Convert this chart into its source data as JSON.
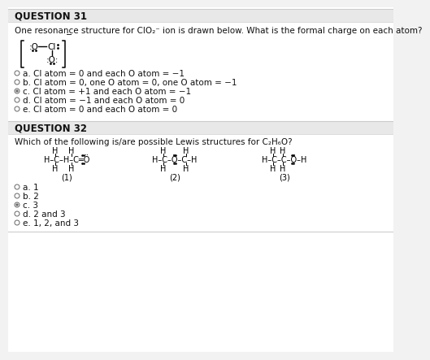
{
  "bg_color": "#f2f2f2",
  "panel_color": "#ffffff",
  "header_color": "#e8e8e8",
  "q31_title": "QUESTION 31",
  "q31_text": "One resonance structure for ClO₂⁻ ion is drawn below. What is the formal charge on each atom?",
  "q31_options": [
    "a. Cl atom = 0 and each O atom = −1",
    "b. Cl atom = 0, one O atom = 0, one O atom = −1",
    "c. Cl atom = +1 and each O atom = −1",
    "d. Cl atom = −1 and each O atom = 0",
    "e. Cl atom = 0 and each O atom = 0"
  ],
  "q31_answer": "c",
  "q32_title": "QUESTION 32",
  "q32_text": "Which of the following is/are possible Lewis structures for C₂H₆O?",
  "q32_options": [
    "a. 1",
    "b. 2",
    "c. 3",
    "d. 2 and 3",
    "e. 1, 2, and 3"
  ],
  "q32_answer": "c",
  "divider_color": "#cccccc",
  "text_color": "#111111",
  "title_color": "#111111",
  "radio_color": "#666666",
  "font_size_title": 8.5,
  "font_size_body": 7.5,
  "font_size_options": 7.5,
  "font_size_struct": 7.0,
  "radio_r": 3.0
}
